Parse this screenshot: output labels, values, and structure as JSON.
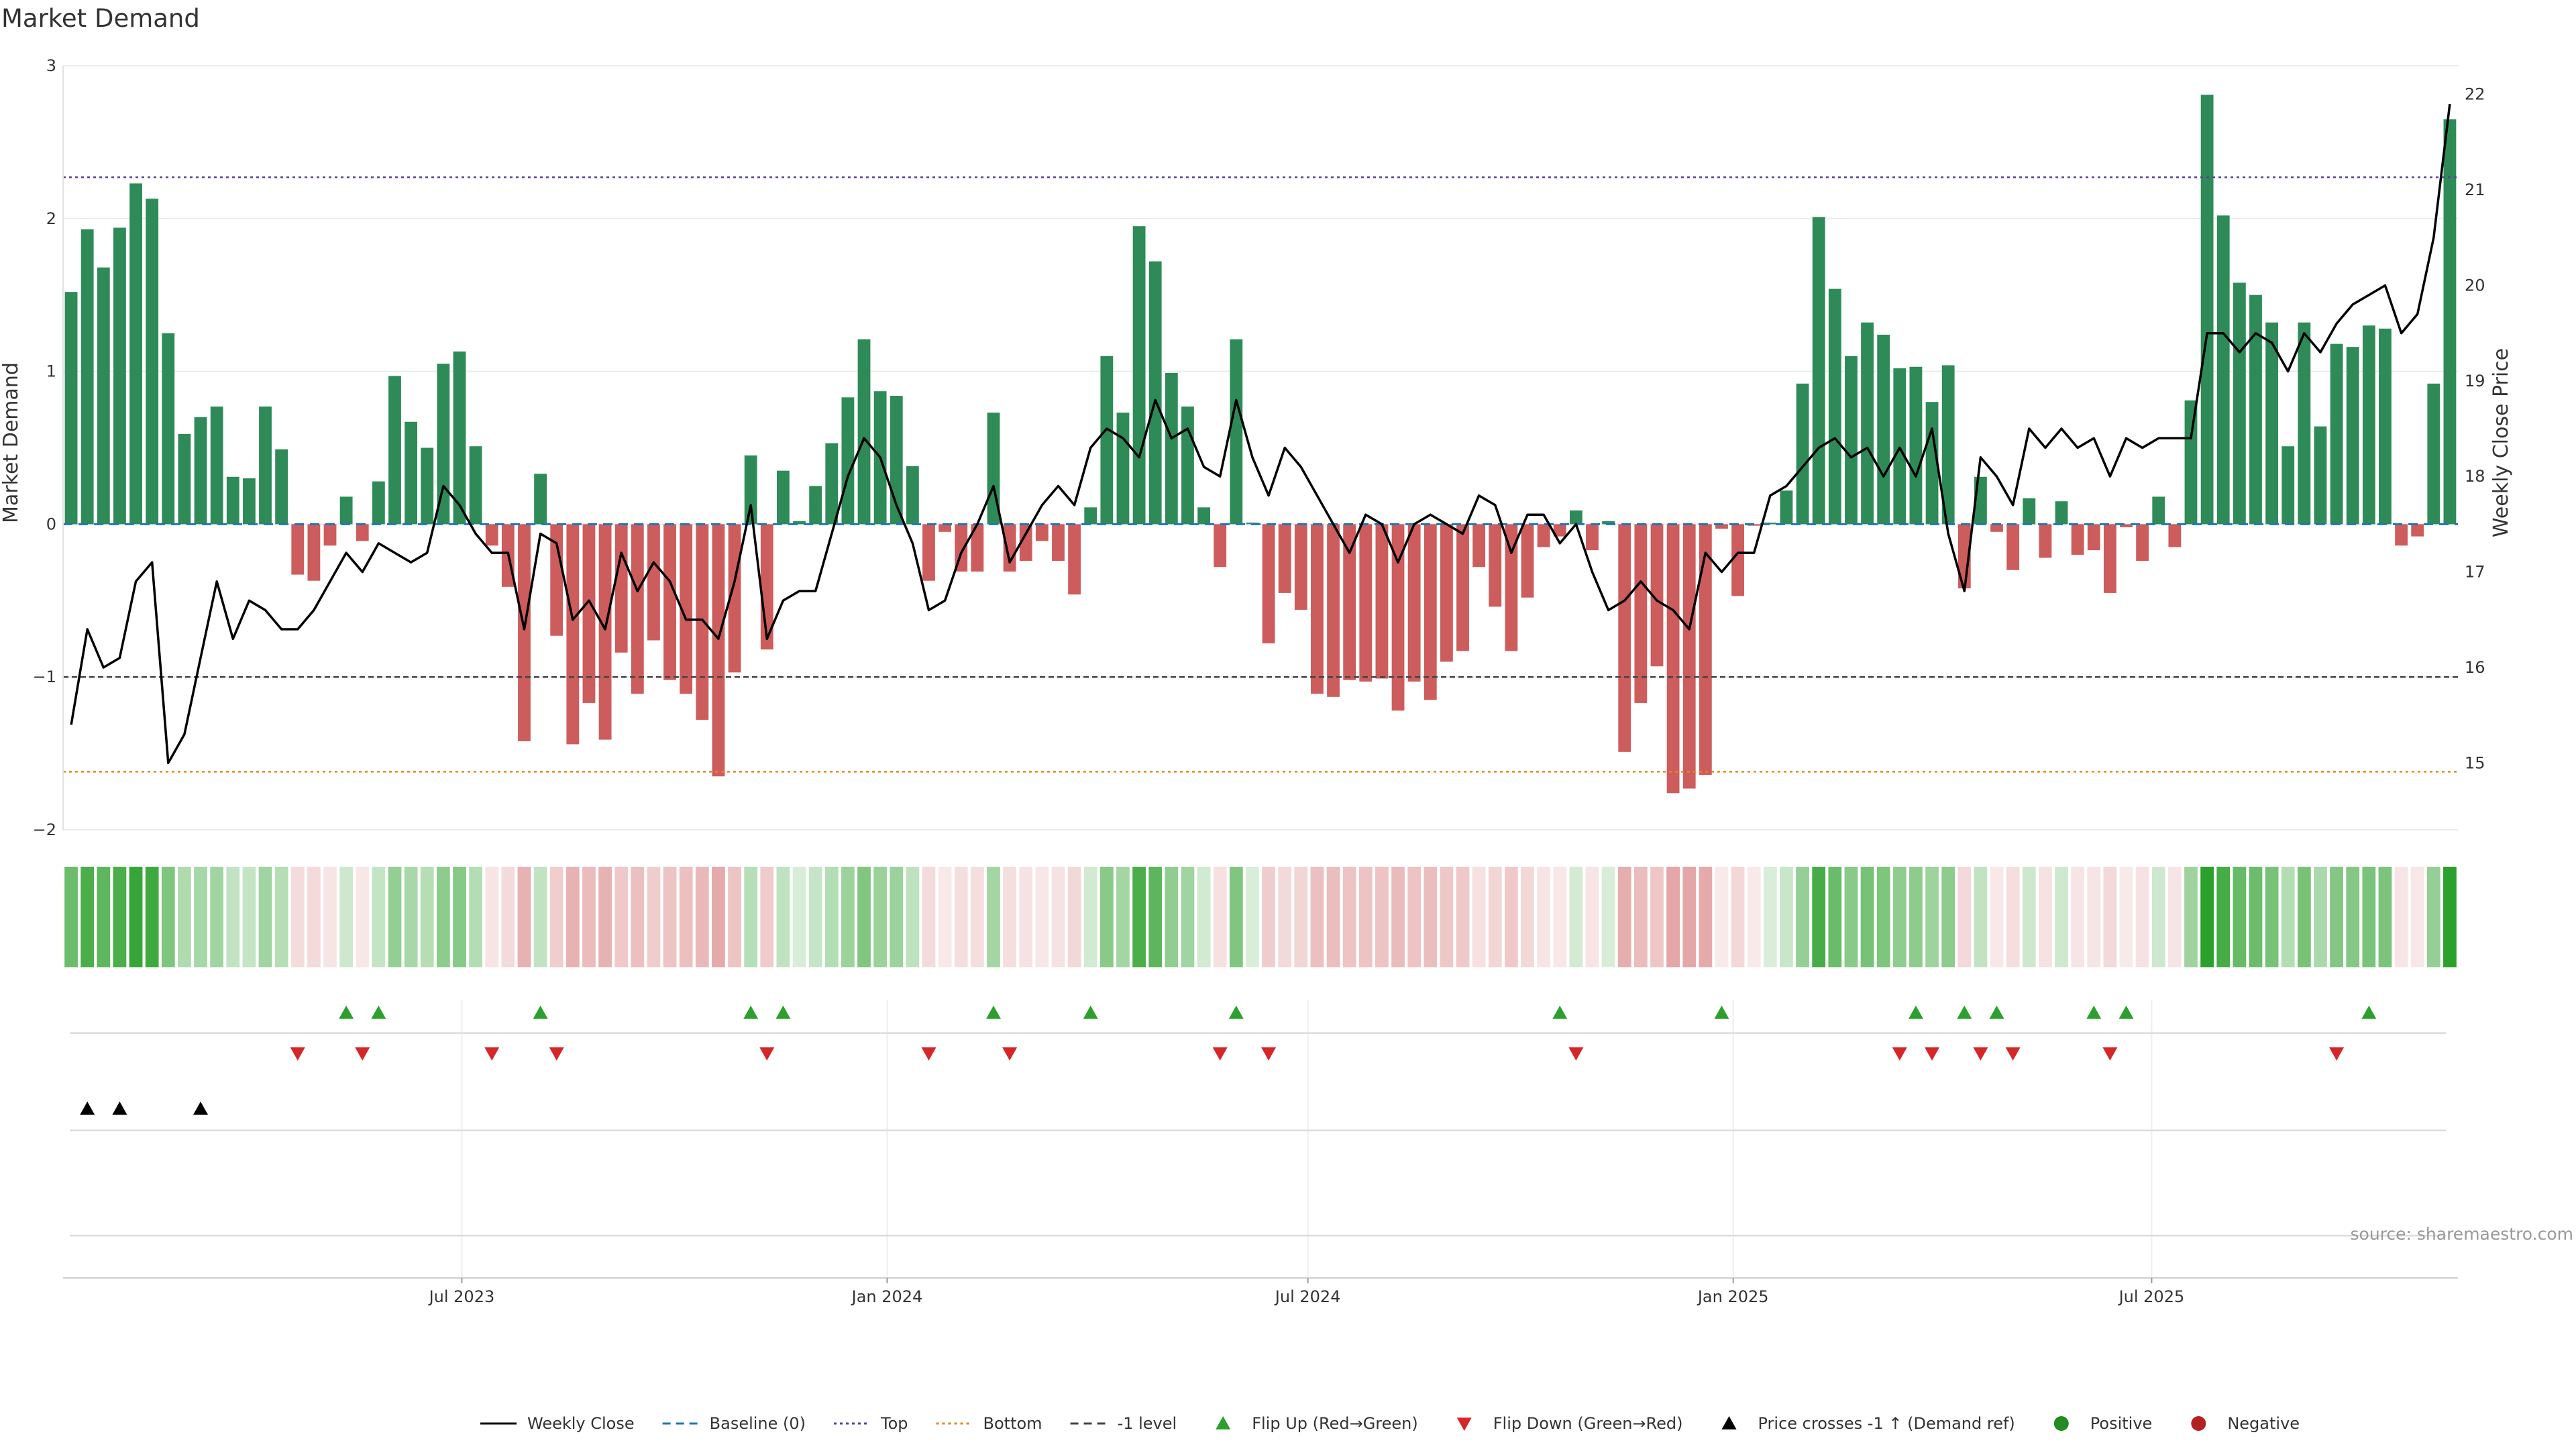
{
  "chart_data": {
    "type": "bar",
    "title": "Market Demand",
    "ylabel_left": "Market Demand",
    "ylabel_right": "Weekly Close Price",
    "ylim_left": [
      -2,
      3
    ],
    "ylim_right": [
      14.3,
      22.3
    ],
    "yticks_left": [
      "3",
      "2",
      "1",
      "0",
      "−1",
      "−2"
    ],
    "yticks_right": [
      "22",
      "21",
      "20",
      "19",
      "18",
      "17",
      "16",
      "15"
    ],
    "x_start": "2023-01-13",
    "x_step_days": 7,
    "x_ticks": [
      {
        "label": "Jul 2023",
        "date": "2023-07-01"
      },
      {
        "label": "Jan 2024",
        "date": "2024-01-01"
      },
      {
        "label": "Jul 2024",
        "date": "2024-07-01"
      },
      {
        "label": "Jan 2025",
        "date": "2025-01-01"
      },
      {
        "label": "Jul 2025",
        "date": "2025-07-01"
      }
    ],
    "reference_lines": {
      "top": 2.27,
      "bottom": -1.62,
      "minus_one": -1,
      "baseline": 0
    },
    "demand": [
      1.52,
      1.93,
      1.68,
      1.94,
      2.23,
      2.13,
      1.25,
      0.59,
      0.7,
      0.77,
      0.31,
      0.3,
      0.77,
      0.49,
      -0.33,
      -0.37,
      -0.14,
      0.18,
      -0.11,
      0.28,
      0.97,
      0.67,
      0.5,
      1.05,
      1.13,
      0.51,
      -0.14,
      -0.41,
      -1.42,
      0.33,
      -0.73,
      -1.44,
      -1.17,
      -1.41,
      -0.84,
      -1.11,
      -0.76,
      -1.02,
      -1.11,
      -1.28,
      -1.65,
      -0.97,
      0.45,
      -0.82,
      0.35,
      0.02,
      0.25,
      0.53,
      0.83,
      1.21,
      0.87,
      0.84,
      0.38,
      -0.37,
      -0.05,
      -0.31,
      -0.31,
      0.73,
      -0.31,
      -0.24,
      -0.11,
      -0.24,
      -0.46,
      0.11,
      1.1,
      0.73,
      1.95,
      1.72,
      0.99,
      0.77,
      0.11,
      -0.28,
      1.21,
      0.01,
      -0.78,
      -0.45,
      -0.56,
      -1.11,
      -1.13,
      -1.02,
      -1.03,
      -1.01,
      -1.22,
      -1.03,
      -1.15,
      -0.9,
      -0.83,
      -0.28,
      -0.54,
      -0.83,
      -0.48,
      -0.15,
      -0.08,
      0.09,
      -0.17,
      0.02,
      -1.49,
      -1.17,
      -0.93,
      -1.76,
      -1.73,
      -1.64,
      -0.03,
      -0.47,
      -0.01,
      0.01,
      0.22,
      0.92,
      2.01,
      1.54,
      1.1,
      1.32,
      1.24,
      1.02,
      1.03,
      0.8,
      1.04,
      -0.42,
      0.31,
      -0.05,
      -0.3,
      0.17,
      -0.22,
      0.15,
      -0.2,
      -0.17,
      -0.45,
      -0.02,
      -0.24,
      0.18,
      -0.15,
      0.81,
      2.81,
      2.02,
      1.58,
      1.5,
      1.32,
      0.51,
      1.32,
      0.64,
      1.18,
      1.16,
      1.3,
      1.28,
      -0.14,
      -0.08,
      0.92,
      2.65
    ],
    "price": [
      15.4,
      16.4,
      16.0,
      16.1,
      16.9,
      17.1,
      15.0,
      15.3,
      16.1,
      16.9,
      16.3,
      16.7,
      16.6,
      16.4,
      16.4,
      16.6,
      16.9,
      17.2,
      17.0,
      17.3,
      17.2,
      17.1,
      17.2,
      17.9,
      17.7,
      17.4,
      17.2,
      17.2,
      16.4,
      17.4,
      17.3,
      16.5,
      16.7,
      16.4,
      17.2,
      16.8,
      17.1,
      16.9,
      16.5,
      16.5,
      16.3,
      16.9,
      17.7,
      16.3,
      16.7,
      16.8,
      16.8,
      17.4,
      18.0,
      18.4,
      18.2,
      17.7,
      17.3,
      16.6,
      16.7,
      17.2,
      17.5,
      17.9,
      17.1,
      17.4,
      17.7,
      17.9,
      17.7,
      18.3,
      18.5,
      18.4,
      18.2,
      18.8,
      18.4,
      18.5,
      18.1,
      18.0,
      18.8,
      18.2,
      17.8,
      18.3,
      18.1,
      17.8,
      17.5,
      17.2,
      17.6,
      17.5,
      17.1,
      17.5,
      17.6,
      17.5,
      17.4,
      17.8,
      17.7,
      17.2,
      17.6,
      17.6,
      17.3,
      17.5,
      17.0,
      16.6,
      16.7,
      16.9,
      16.7,
      16.6,
      16.4,
      17.2,
      17.0,
      17.2,
      17.2,
      17.8,
      17.9,
      18.1,
      18.3,
      18.4,
      18.2,
      18.3,
      18.0,
      18.3,
      18.0,
      18.5,
      17.4,
      16.8,
      18.2,
      18.0,
      17.7,
      18.5,
      18.3,
      18.5,
      18.3,
      18.4,
      18.0,
      18.4,
      18.3,
      18.4,
      18.4,
      18.4,
      19.5,
      19.5,
      19.3,
      19.5,
      19.4,
      19.1,
      19.5,
      19.3,
      19.6,
      19.8,
      19.9,
      20.0,
      19.5,
      19.7,
      20.5,
      21.9
    ],
    "flip_up_index": [
      17,
      19,
      29,
      42,
      44,
      57,
      63,
      72,
      92,
      102,
      114,
      117,
      119,
      125,
      127,
      142
    ],
    "flip_down_index": [
      14,
      18,
      26,
      30,
      43,
      53,
      58,
      71,
      74,
      93,
      113,
      115,
      118,
      120,
      126,
      140
    ],
    "price_cross_index": [
      1,
      3,
      8
    ],
    "legend": [
      {
        "label": "Weekly Close",
        "marker": "solid-line",
        "color": "#000000"
      },
      {
        "label": "Baseline (0)",
        "marker": "dashed-line",
        "color": "#1f77b4"
      },
      {
        "label": "Top",
        "marker": "dotted-line",
        "color": "#5b3d9e"
      },
      {
        "label": "Bottom",
        "marker": "dotted-line",
        "color": "#e8851e"
      },
      {
        "label": "-1 level",
        "marker": "dashed-line",
        "color": "#444444"
      },
      {
        "label": "Flip Up (Red→Green)",
        "marker": "triangle-up",
        "color": "#2ca02c"
      },
      {
        "label": "Flip Down (Green→Red)",
        "marker": "triangle-down",
        "color": "#d62728"
      },
      {
        "label": "Price crosses -1 ↑ (Demand ref)",
        "marker": "triangle-up",
        "color": "#000000"
      },
      {
        "label": "Positive",
        "marker": "circle",
        "color": "#228b22"
      },
      {
        "label": "Negative",
        "marker": "circle",
        "color": "#b22222"
      }
    ],
    "source": "source: sharemaestro.com",
    "colors": {
      "positive": "#2e8b57",
      "negative": "#cd5c5c",
      "up": "#2ca02c",
      "down": "#d62728"
    }
  }
}
